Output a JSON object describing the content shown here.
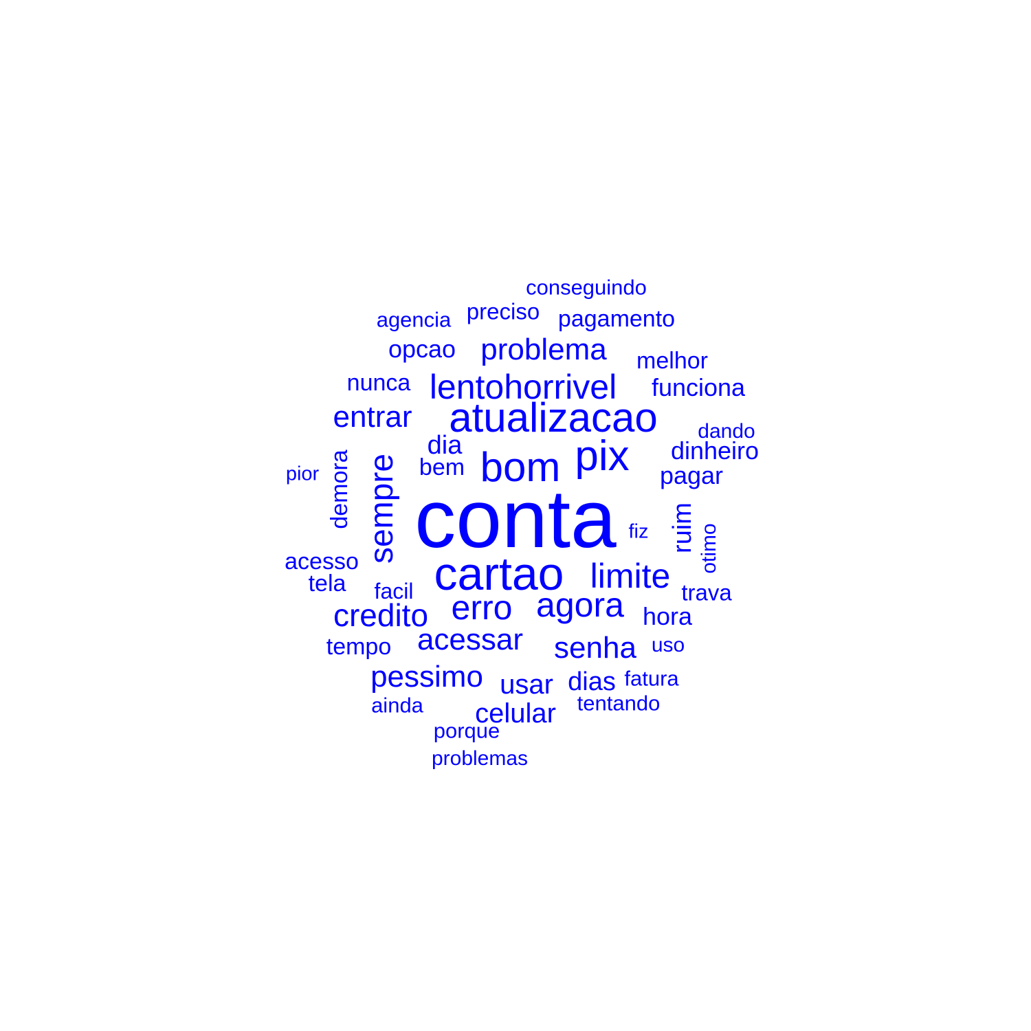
{
  "word_color": "#0000ff",
  "background_color": "#ffffff",
  "words": {
    "conta": "conta",
    "cartao": "cartao",
    "atualizacao": "atualizacao",
    "bom": "bom",
    "pix": "pix",
    "sempre": "sempre",
    "lentohorrivel": "lentohorrivel",
    "limite": "limite",
    "agora": "agora",
    "erro": "erro",
    "credito": "credito",
    "entrar": "entrar",
    "problema": "problema",
    "acessar": "acessar",
    "senha": "senha",
    "pessimo": "pessimo",
    "usar": "usar",
    "celular": "celular",
    "dias": "dias",
    "dia": "dia",
    "ruim": "ruim",
    "dinheiro": "dinheiro",
    "pagar": "pagar",
    "funciona": "funciona",
    "opcao": "opcao",
    "hora": "hora",
    "nunca": "nunca",
    "bem": "bem",
    "demora": "demora",
    "melhor": "melhor",
    "acesso": "acesso",
    "tela": "tela",
    "tempo": "tempo",
    "pagamento": "pagamento",
    "trava": "trava",
    "facil": "facil",
    "preciso": "preciso",
    "agencia": "agencia",
    "conseguindo": "conseguindo",
    "tentando": "tentando",
    "ainda": "ainda",
    "fatura": "fatura",
    "otimo": "otimo",
    "porque": "porque",
    "problemas": "problemas",
    "dando": "dando",
    "uso": "uso",
    "pior": "pior",
    "fiz": "fiz"
  }
}
